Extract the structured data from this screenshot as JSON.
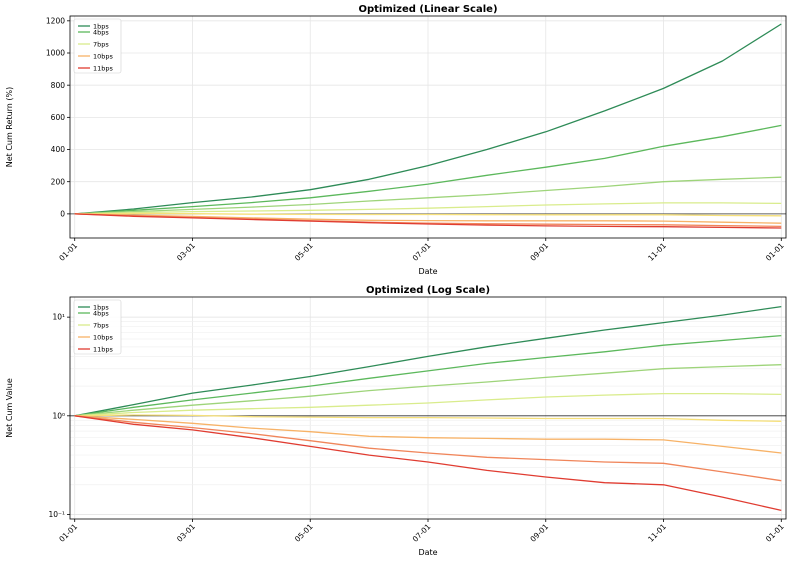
{
  "chart_data": [
    {
      "type": "line",
      "title": "Optimized (Linear Scale)",
      "xlabel": "Date",
      "ylabel": "Net Cum Return (%)",
      "yscale": "linear",
      "ylim": [
        -150,
        1230
      ],
      "yticks": [
        0,
        200,
        400,
        600,
        800,
        1000,
        1200
      ],
      "xticks": [
        "01-01",
        "03-01",
        "05-01",
        "07-01",
        "09-01",
        "11-01",
        "01-01"
      ],
      "x_months": [
        0,
        1,
        2,
        3,
        4,
        5,
        6,
        7,
        8,
        9,
        10,
        11,
        12
      ],
      "reference_line": 0,
      "grid": true,
      "legend": "top-left",
      "series": [
        {
          "name": "1bps",
          "color": "#2e8b57",
          "values": [
            0,
            30,
            70,
            105,
            150,
            215,
            300,
            400,
            510,
            640,
            780,
            950,
            1180
          ]
        },
        {
          "name": "4bps",
          "color": "#5cb85c",
          "values": [
            0,
            22,
            45,
            70,
            100,
            140,
            185,
            240,
            290,
            345,
            420,
            480,
            550
          ]
        },
        {
          "name": "",
          "color": "#9ed47a",
          "values": [
            0,
            14,
            28,
            42,
            58,
            80,
            100,
            120,
            145,
            170,
            200,
            215,
            228
          ]
        },
        {
          "name": "7bps",
          "color": "#d9ec8c",
          "values": [
            0,
            8,
            14,
            18,
            22,
            28,
            35,
            45,
            55,
            62,
            68,
            68,
            65
          ]
        },
        {
          "name": "",
          "color": "#f6e07a",
          "values": [
            0,
            2,
            1,
            -2,
            -3,
            -4,
            -4,
            -5,
            -6,
            -6,
            -6,
            -10,
            -12
          ]
        },
        {
          "name": "10bps",
          "color": "#f7b267",
          "values": [
            0,
            -8,
            -16,
            -25,
            -33,
            -40,
            -42,
            -43,
            -43,
            -43,
            -45,
            -52,
            -58
          ]
        },
        {
          "name": "",
          "color": "#f0855a",
          "values": [
            0,
            -12,
            -22,
            -32,
            -42,
            -52,
            -58,
            -62,
            -64,
            -66,
            -68,
            -73,
            -78
          ]
        },
        {
          "name": "11bps",
          "color": "#e03c31",
          "values": [
            0,
            -15,
            -25,
            -35,
            -45,
            -55,
            -63,
            -70,
            -75,
            -78,
            -80,
            -84,
            -88
          ]
        }
      ]
    },
    {
      "type": "line",
      "title": "Optimized (Log Scale)",
      "xlabel": "Date",
      "ylabel": "Net Cum Value",
      "yscale": "log",
      "ylim": [
        0.09,
        16
      ],
      "yticks": [
        0.1,
        1,
        10
      ],
      "ytick_labels": [
        "10⁻¹",
        "10⁰",
        "10¹"
      ],
      "xticks": [
        "01-01",
        "03-01",
        "05-01",
        "07-01",
        "09-01",
        "11-01",
        "01-01"
      ],
      "x_months": [
        0,
        1,
        2,
        3,
        4,
        5,
        6,
        7,
        8,
        9,
        10,
        11,
        12
      ],
      "reference_line": 1,
      "grid": true,
      "legend": "top-left",
      "series": [
        {
          "name": "1bps",
          "color": "#2e8b57",
          "values": [
            1.0,
            1.3,
            1.7,
            2.05,
            2.5,
            3.15,
            4.0,
            5.0,
            6.1,
            7.4,
            8.8,
            10.5,
            12.8
          ]
        },
        {
          "name": "4bps",
          "color": "#5cb85c",
          "values": [
            1.0,
            1.22,
            1.45,
            1.7,
            2.0,
            2.4,
            2.85,
            3.4,
            3.9,
            4.45,
            5.2,
            5.8,
            6.5
          ]
        },
        {
          "name": "",
          "color": "#9ed47a",
          "values": [
            1.0,
            1.14,
            1.28,
            1.42,
            1.58,
            1.8,
            2.0,
            2.2,
            2.45,
            2.7,
            3.0,
            3.15,
            3.3
          ]
        },
        {
          "name": "7bps",
          "color": "#d9ec8c",
          "values": [
            1.0,
            1.08,
            1.14,
            1.18,
            1.22,
            1.28,
            1.35,
            1.45,
            1.55,
            1.62,
            1.68,
            1.68,
            1.65
          ]
        },
        {
          "name": "",
          "color": "#f6e07a",
          "values": [
            1.0,
            1.02,
            1.01,
            0.98,
            0.97,
            0.96,
            0.96,
            0.95,
            0.94,
            0.94,
            0.94,
            0.9,
            0.88
          ]
        },
        {
          "name": "10bps",
          "color": "#f7b267",
          "values": [
            1.0,
            0.92,
            0.84,
            0.75,
            0.69,
            0.62,
            0.6,
            0.59,
            0.58,
            0.58,
            0.57,
            0.49,
            0.42
          ]
        },
        {
          "name": "",
          "color": "#f0855a",
          "values": [
            1.0,
            0.86,
            0.76,
            0.66,
            0.56,
            0.47,
            0.42,
            0.38,
            0.36,
            0.34,
            0.33,
            0.27,
            0.22
          ]
        },
        {
          "name": "11bps",
          "color": "#e03c31",
          "values": [
            1.0,
            0.82,
            0.72,
            0.6,
            0.49,
            0.4,
            0.34,
            0.28,
            0.24,
            0.21,
            0.2,
            0.15,
            0.11
          ]
        }
      ]
    }
  ]
}
